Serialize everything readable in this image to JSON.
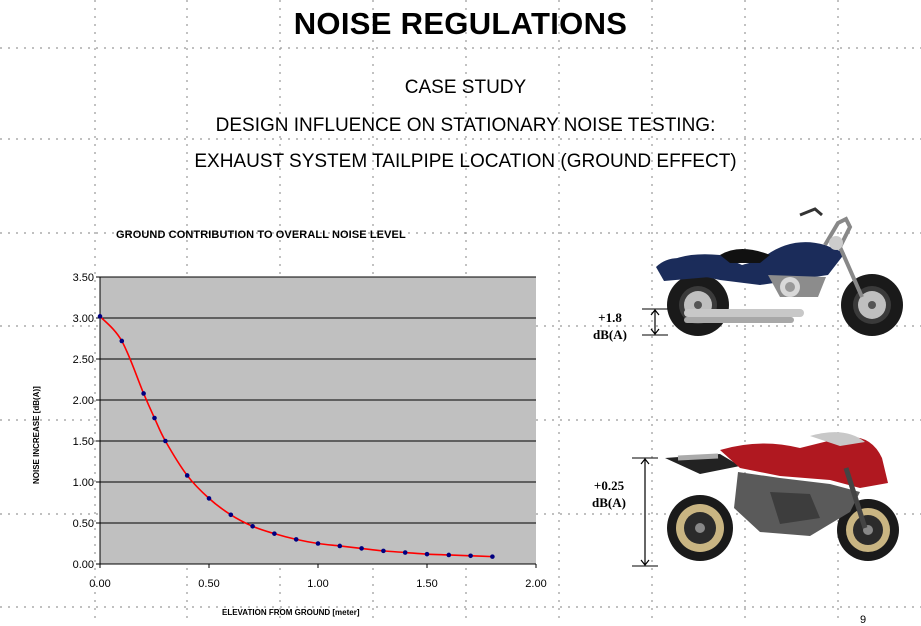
{
  "page": {
    "title": "NOISE REGULATIONS",
    "subtitle1": "CASE STUDY",
    "subtitle2": "DESIGN INFLUENCE ON STATIONARY NOISE TESTING:",
    "subtitle3": "EXHAUST SYSTEM TAILPIPE LOCATION (GROUND EFFECT)",
    "page_number": "9"
  },
  "annotations": {
    "cruiser_delta_line1": "+1.8",
    "cruiser_delta_line2": "dB(A)",
    "sport_delta_line1": "+0.25",
    "sport_delta_line2": "dB(A)"
  },
  "images": {
    "cruiser": "blue cruiser motorcycle with low tailpipe",
    "sportbike": "red and grey sport motorcycle with high tailpipe"
  },
  "colors": {
    "plot_area": "#c0c0c0",
    "curve": "#ff0000",
    "markers": "#000080",
    "gridline": "#000000"
  },
  "chart_data": {
    "type": "line",
    "title": "GROUND CONTRIBUTION TO OVERALL NOISE LEVEL",
    "xlabel": "ELEVATION FROM GROUND [meter]",
    "ylabel": "NOISE INCREASE [dB(A)]",
    "xlim": [
      0,
      2
    ],
    "ylim": [
      0,
      3.5
    ],
    "x_ticks": [
      "0.00",
      "0.50",
      "1.00",
      "1.50",
      "2.00"
    ],
    "y_ticks": [
      "0.00",
      "0.50",
      "1.00",
      "1.50",
      "2.00",
      "2.50",
      "3.00",
      "3.50"
    ],
    "grid": "horizontal",
    "legend": "none",
    "series": [
      {
        "x": [
          0.0,
          0.1,
          0.2,
          0.25,
          0.3,
          0.4,
          0.5,
          0.6,
          0.7,
          0.8,
          0.9,
          1.0,
          1.1,
          1.2,
          1.3,
          1.4,
          1.5,
          1.6,
          1.7,
          1.8
        ],
        "y": [
          3.02,
          2.72,
          2.08,
          1.78,
          1.5,
          1.08,
          0.8,
          0.6,
          0.46,
          0.37,
          0.3,
          0.25,
          0.22,
          0.19,
          0.16,
          0.14,
          0.12,
          0.11,
          0.1,
          0.09
        ]
      }
    ]
  }
}
